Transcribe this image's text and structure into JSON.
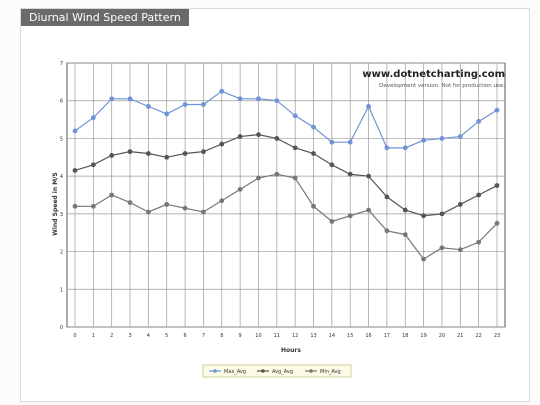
{
  "chart_data": {
    "type": "line",
    "title": "Diurnal Wind Speed Pattern",
    "xlabel": "Hours",
    "ylabel": "Wind Speed in M/S",
    "watermark": "www.dotnetcharting.com",
    "watermark_sub": "Development version. Not for production use.",
    "x": [
      0,
      1,
      2,
      3,
      4,
      5,
      6,
      7,
      8,
      9,
      10,
      11,
      12,
      13,
      14,
      15,
      16,
      17,
      18,
      19,
      20,
      21,
      22,
      23
    ],
    "ylim": [
      0,
      7
    ],
    "yticks": [
      0,
      1,
      2,
      3,
      4,
      5,
      6,
      7
    ],
    "grid": true,
    "legend_position": "bottom",
    "series": [
      {
        "name": "Max_Avg",
        "color": "#6f93d6",
        "values": [
          5.2,
          5.55,
          6.05,
          6.05,
          5.85,
          5.65,
          5.9,
          5.9,
          6.25,
          6.05,
          6.05,
          6.0,
          5.6,
          5.3,
          4.9,
          4.9,
          5.85,
          4.75,
          4.75,
          4.95,
          5.0,
          5.05,
          5.45,
          5.75
        ]
      },
      {
        "name": "Avg_Avg",
        "color": "#555555",
        "values": [
          4.15,
          4.3,
          4.55,
          4.65,
          4.6,
          4.5,
          4.6,
          4.65,
          4.85,
          5.05,
          5.1,
          5.0,
          4.75,
          4.6,
          4.3,
          4.05,
          4.0,
          3.45,
          3.1,
          2.95,
          3.0,
          3.25,
          3.5,
          3.75
        ]
      },
      {
        "name": "Min_Avg",
        "color": "#777777",
        "values": [
          3.2,
          3.2,
          3.5,
          3.3,
          3.05,
          3.25,
          3.15,
          3.05,
          3.35,
          3.65,
          3.95,
          4.05,
          3.95,
          3.2,
          2.8,
          2.95,
          3.1,
          2.55,
          2.45,
          1.8,
          2.1,
          2.05,
          2.25,
          2.75
        ]
      }
    ]
  }
}
